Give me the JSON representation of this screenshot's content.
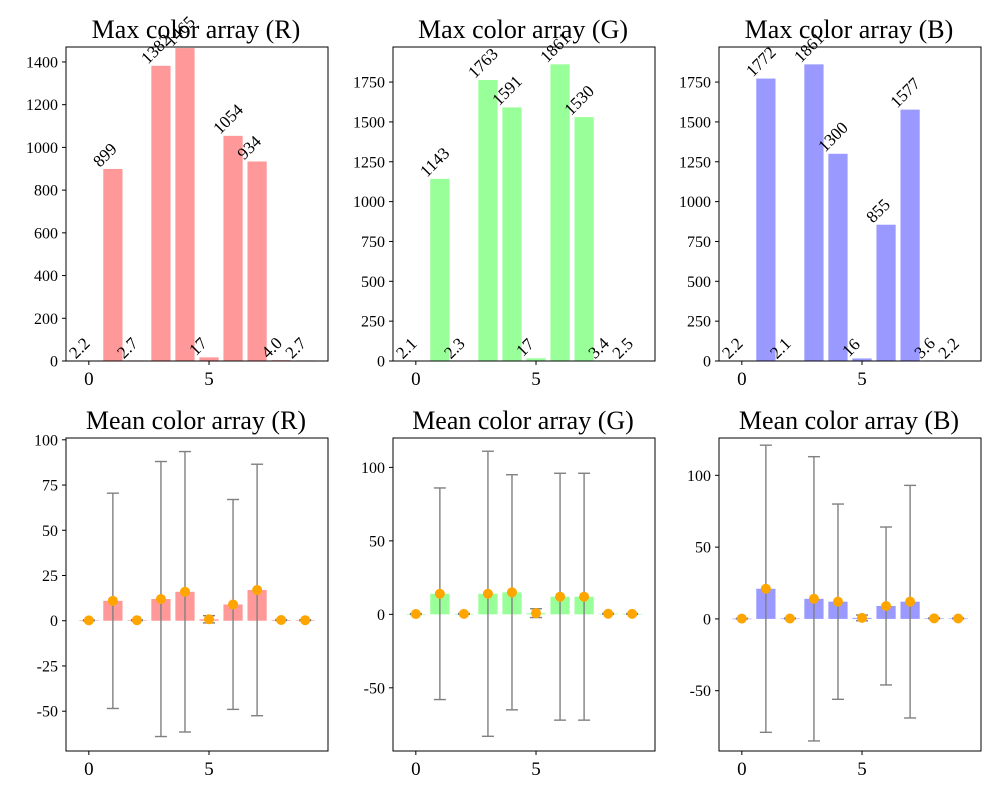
{
  "figure": {
    "background": "#ffffff"
  },
  "styles": {
    "bar_colors": {
      "R": "#ff9999",
      "G": "#99ff99",
      "B": "#9999ff"
    },
    "error_color": "#808080",
    "mean_marker_color": "#ffa500"
  },
  "chart_data": [
    {
      "type": "bar",
      "channel": "R",
      "title": "Max color array (R)",
      "x": [
        0,
        1,
        2,
        3,
        4,
        5,
        6,
        7,
        8,
        9
      ],
      "values": [
        2.2,
        899,
        2.7,
        1382,
        1465,
        17,
        1054,
        934,
        4.0,
        2.7
      ],
      "data_labels": [
        "2.2",
        "899",
        "2.7",
        "1382",
        "1465",
        "17",
        "1054",
        "934",
        "4.0",
        "2.7"
      ],
      "xticks": [
        0,
        5
      ],
      "yticks": [
        0,
        200,
        400,
        600,
        800,
        1000,
        1200,
        1400
      ],
      "ylim": [
        0,
        1470
      ]
    },
    {
      "type": "bar",
      "channel": "G",
      "title": "Max color array (G)",
      "x": [
        0,
        1,
        2,
        3,
        4,
        5,
        6,
        7,
        8,
        9
      ],
      "values": [
        2.1,
        1143,
        2.3,
        1763,
        1591,
        17,
        1861,
        1530,
        3.4,
        2.5
      ],
      "data_labels": [
        "2.1",
        "1143",
        "2.3",
        "1763",
        "1591",
        "17",
        "1861",
        "1530",
        "3.4",
        "2.5"
      ],
      "xticks": [
        0,
        5
      ],
      "yticks": [
        0,
        250,
        500,
        750,
        1000,
        1250,
        1500,
        1750
      ],
      "ylim": [
        0,
        1970
      ]
    },
    {
      "type": "bar",
      "channel": "B",
      "title": "Max color array (B)",
      "x": [
        0,
        1,
        2,
        3,
        4,
        5,
        6,
        7,
        8,
        9
      ],
      "values": [
        2.2,
        1772,
        2.1,
        1861,
        1300,
        16,
        855,
        1577,
        3.6,
        2.2
      ],
      "data_labels": [
        "2.2",
        "1772",
        "2.1",
        "1861",
        "1300",
        "16",
        "855",
        "1577",
        "3.6",
        "2.2"
      ],
      "xticks": [
        0,
        5
      ],
      "yticks": [
        0,
        250,
        500,
        750,
        1000,
        1250,
        1500,
        1750
      ],
      "ylim": [
        0,
        1970
      ]
    },
    {
      "type": "bar",
      "channel": "R",
      "title": "Mean color array (R)",
      "x": [
        0,
        1,
        2,
        3,
        4,
        5,
        6,
        7,
        8,
        9
      ],
      "values": [
        0.2,
        11,
        0.3,
        12,
        16,
        0.8,
        9,
        17,
        0.4,
        0.3
      ],
      "errors": [
        0.3,
        59.5,
        0.3,
        76,
        77.5,
        2,
        58,
        69.5,
        0.3,
        0.3
      ],
      "xticks": [
        0,
        5
      ],
      "yticks": [
        -50,
        -25,
        0,
        25,
        50,
        75,
        100
      ],
      "ylim": [
        -72,
        101
      ]
    },
    {
      "type": "bar",
      "channel": "G",
      "title": "Mean color array (G)",
      "x": [
        0,
        1,
        2,
        3,
        4,
        5,
        6,
        7,
        8,
        9
      ],
      "values": [
        0.2,
        14,
        0.3,
        14,
        15,
        0.8,
        12,
        12,
        0.4,
        0.3
      ],
      "errors": [
        0.3,
        72,
        0.3,
        97,
        80,
        3,
        84,
        84,
        0.3,
        0.3
      ],
      "xticks": [
        0,
        5
      ],
      "yticks": [
        -50,
        0,
        50,
        100
      ],
      "ylim": [
        -93,
        120
      ]
    },
    {
      "type": "bar",
      "channel": "B",
      "title": "Mean color array (B)",
      "x": [
        0,
        1,
        2,
        3,
        4,
        5,
        6,
        7,
        8,
        9
      ],
      "values": [
        0.2,
        21,
        0.3,
        14,
        12,
        0.7,
        9,
        12,
        0.4,
        0.3
      ],
      "errors": [
        0.3,
        100,
        0.3,
        99,
        68,
        2,
        55,
        81,
        0.3,
        0.3
      ],
      "xticks": [
        0,
        5
      ],
      "yticks": [
        -50,
        0,
        50,
        100
      ],
      "ylim": [
        -92,
        126
      ]
    }
  ]
}
